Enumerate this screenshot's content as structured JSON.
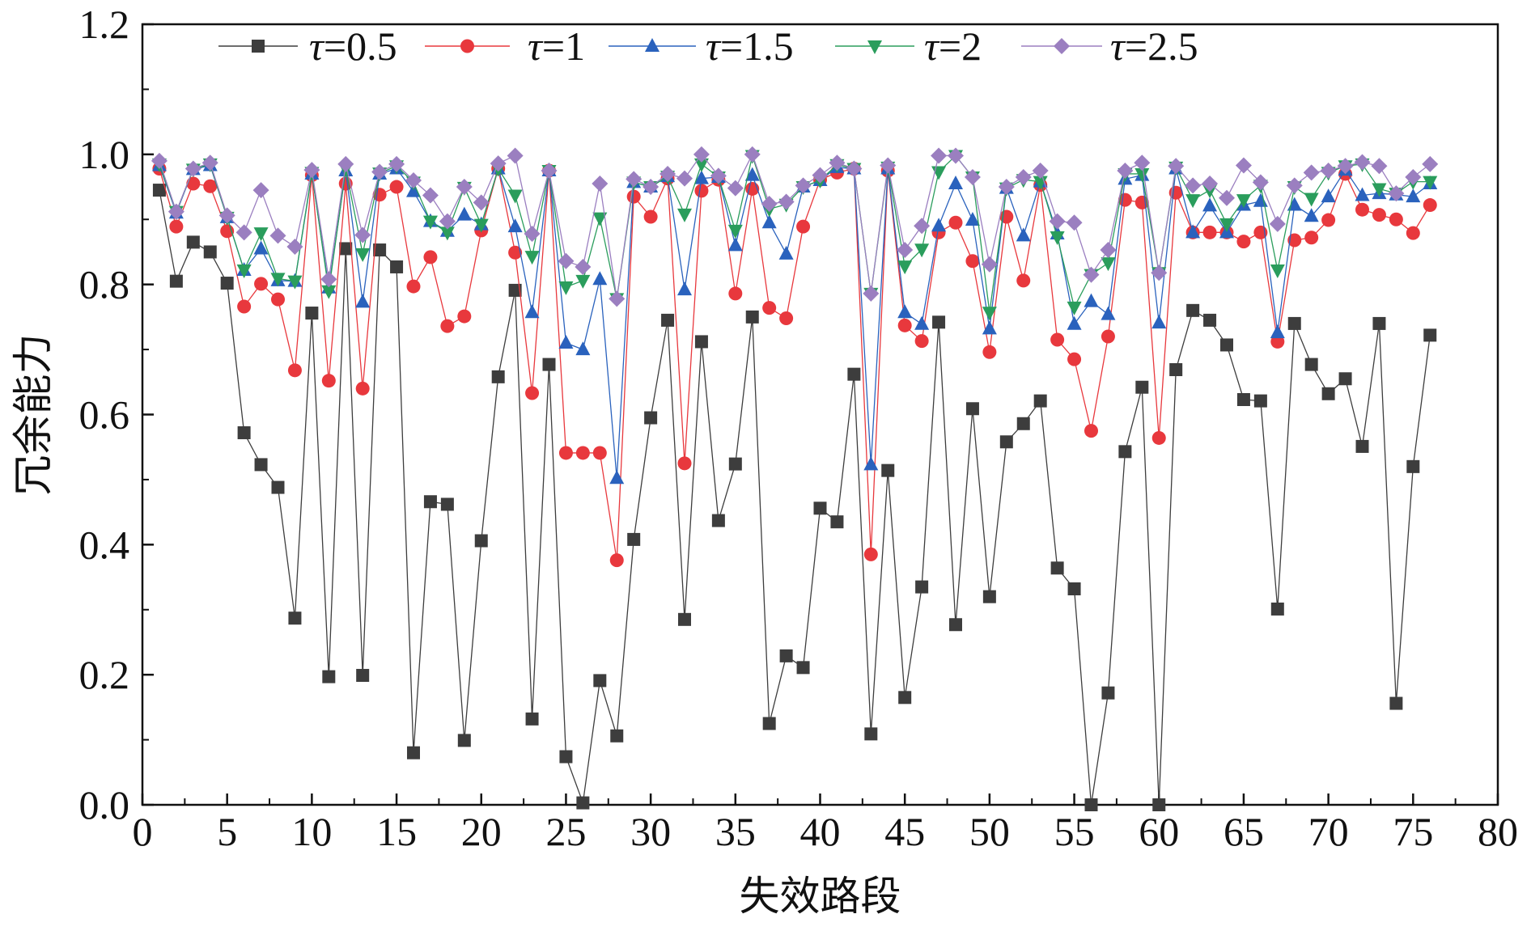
{
  "chart_data": {
    "type": "line",
    "title": "",
    "xlabel": "失效路段",
    "ylabel": "冗余能力",
    "xlim": [
      0,
      80
    ],
    "ylim": [
      0,
      1.2
    ],
    "x_ticks": [
      "0",
      "5",
      "10",
      "15",
      "20",
      "25",
      "30",
      "35",
      "40",
      "45",
      "50",
      "55",
      "60",
      "65",
      "70",
      "75",
      "80"
    ],
    "y_ticks": [
      "0.0",
      "0.2",
      "0.4",
      "0.6",
      "0.8",
      "1.0",
      "1.2"
    ],
    "grid": false,
    "legend_position": "top",
    "legend_symbol": "τ",
    "x": [
      1,
      2,
      3,
      4,
      5,
      6,
      7,
      8,
      9,
      10,
      11,
      12,
      13,
      14,
      15,
      16,
      17,
      18,
      19,
      20,
      21,
      22,
      23,
      24,
      25,
      26,
      27,
      28,
      29,
      30,
      31,
      32,
      33,
      34,
      35,
      36,
      37,
      38,
      39,
      40,
      41,
      42,
      43,
      44,
      45,
      46,
      47,
      48,
      49,
      50,
      51,
      52,
      53,
      54,
      55,
      56,
      57,
      58,
      59,
      60,
      61,
      62,
      63,
      64,
      65,
      66,
      67,
      68,
      69,
      70,
      71,
      72,
      73,
      74,
      75,
      76
    ],
    "series": [
      {
        "name": "=0.5",
        "color": "#3d3d3d",
        "marker": "square",
        "values": [
          0.945,
          0.805,
          0.865,
          0.85,
          0.802,
          0.572,
          0.523,
          0.488,
          0.287,
          0.756,
          0.197,
          0.855,
          0.199,
          0.853,
          0.827,
          0.08,
          0.466,
          0.462,
          0.099,
          0.406,
          0.658,
          0.791,
          0.132,
          0.677,
          0.074,
          0.003,
          0.191,
          0.106,
          0.408,
          0.595,
          0.745,
          0.285,
          0.712,
          0.437,
          0.524,
          0.75,
          0.125,
          0.229,
          0.211,
          0.456,
          0.435,
          0.662,
          0.109,
          0.514,
          0.165,
          0.335,
          0.742,
          0.277,
          0.609,
          0.32,
          0.558,
          0.586,
          0.621,
          0.364,
          0.332,
          0.0,
          0.172,
          0.543,
          0.642,
          0.0,
          0.669,
          0.76,
          0.745,
          0.707,
          0.623,
          0.621,
          0.301,
          0.74,
          0.677,
          0.632,
          0.655,
          0.551,
          0.74,
          0.156,
          0.52,
          0.722
        ]
      },
      {
        "name": "=1",
        "color": "#e8383d",
        "marker": "circle",
        "values": [
          0.978,
          0.889,
          0.955,
          0.951,
          0.882,
          0.766,
          0.801,
          0.777,
          0.668,
          0.968,
          0.652,
          0.955,
          0.64,
          0.938,
          0.95,
          0.797,
          0.842,
          0.736,
          0.751,
          0.883,
          0.978,
          0.849,
          0.633,
          0.975,
          0.541,
          0.541,
          0.541,
          0.376,
          0.935,
          0.904,
          0.963,
          0.525,
          0.944,
          0.961,
          0.786,
          0.947,
          0.764,
          0.748,
          0.889,
          0.961,
          0.972,
          0.978,
          0.385,
          0.975,
          0.737,
          0.713,
          0.88,
          0.895,
          0.836,
          0.696,
          0.904,
          0.806,
          0.953,
          0.715,
          0.685,
          0.575,
          0.72,
          0.93,
          0.926,
          0.564,
          0.941,
          0.88,
          0.88,
          0.88,
          0.866,
          0.88,
          0.712,
          0.868,
          0.872,
          0.899,
          0.97,
          0.915,
          0.907,
          0.9,
          0.879,
          0.922
        ]
      },
      {
        "name": "=1.5",
        "color": "#2a62bd",
        "marker": "triangle-up",
        "values": [
          0.983,
          0.91,
          0.977,
          0.983,
          0.903,
          0.822,
          0.855,
          0.806,
          0.805,
          0.97,
          0.795,
          0.975,
          0.773,
          0.97,
          0.978,
          0.943,
          0.897,
          0.882,
          0.907,
          0.892,
          0.978,
          0.889,
          0.757,
          0.975,
          0.71,
          0.7,
          0.808,
          0.502,
          0.957,
          0.95,
          0.966,
          0.792,
          0.963,
          0.965,
          0.86,
          0.968,
          0.895,
          0.847,
          0.95,
          0.96,
          0.98,
          0.978,
          0.523,
          0.978,
          0.757,
          0.739,
          0.89,
          0.955,
          0.899,
          0.732,
          0.948,
          0.875,
          0.958,
          0.878,
          0.739,
          0.774,
          0.754,
          0.962,
          0.968,
          0.741,
          0.978,
          0.88,
          0.921,
          0.88,
          0.922,
          0.928,
          0.726,
          0.922,
          0.905,
          0.935,
          0.976,
          0.937,
          0.94,
          0.938,
          0.935,
          0.955
        ]
      },
      {
        "name": "=2",
        "color": "#2a9d5c",
        "marker": "triangle-down",
        "values": [
          0.985,
          0.912,
          0.977,
          0.985,
          0.903,
          0.822,
          0.879,
          0.809,
          0.805,
          0.972,
          0.79,
          0.978,
          0.847,
          0.971,
          0.982,
          0.957,
          0.897,
          0.88,
          0.949,
          0.892,
          0.978,
          0.937,
          0.843,
          0.975,
          0.796,
          0.806,
          0.902,
          0.778,
          0.957,
          0.95,
          0.966,
          0.908,
          0.985,
          0.965,
          0.883,
          0.998,
          0.916,
          0.923,
          0.95,
          0.96,
          0.984,
          0.978,
          0.786,
          0.98,
          0.828,
          0.854,
          0.973,
          0.998,
          0.965,
          0.757,
          0.948,
          0.961,
          0.958,
          0.873,
          0.765,
          0.815,
          0.833,
          0.97,
          0.97,
          0.818,
          0.98,
          0.93,
          0.945,
          0.893,
          0.93,
          0.952,
          0.822,
          0.95,
          0.932,
          0.972,
          0.982,
          0.985,
          0.947,
          0.94,
          0.958,
          0.958
        ]
      },
      {
        "name": "=2.5",
        "color": "#9b7fc0",
        "marker": "diamond",
        "values": [
          0.99,
          0.912,
          0.978,
          0.987,
          0.906,
          0.88,
          0.945,
          0.875,
          0.858,
          0.976,
          0.808,
          0.985,
          0.876,
          0.973,
          0.985,
          0.96,
          0.937,
          0.897,
          0.95,
          0.926,
          0.986,
          0.998,
          0.878,
          0.975,
          0.836,
          0.827,
          0.955,
          0.778,
          0.962,
          0.95,
          0.97,
          0.963,
          1.0,
          0.967,
          0.948,
          1.0,
          0.924,
          0.927,
          0.952,
          0.968,
          0.987,
          0.978,
          0.786,
          0.983,
          0.853,
          0.89,
          0.998,
          0.998,
          0.965,
          0.831,
          0.95,
          0.965,
          0.975,
          0.897,
          0.895,
          0.815,
          0.853,
          0.975,
          0.987,
          0.818,
          0.982,
          0.952,
          0.955,
          0.933,
          0.983,
          0.957,
          0.893,
          0.952,
          0.972,
          0.975,
          0.982,
          0.988,
          0.982,
          0.94,
          0.965,
          0.985
        ]
      }
    ]
  }
}
